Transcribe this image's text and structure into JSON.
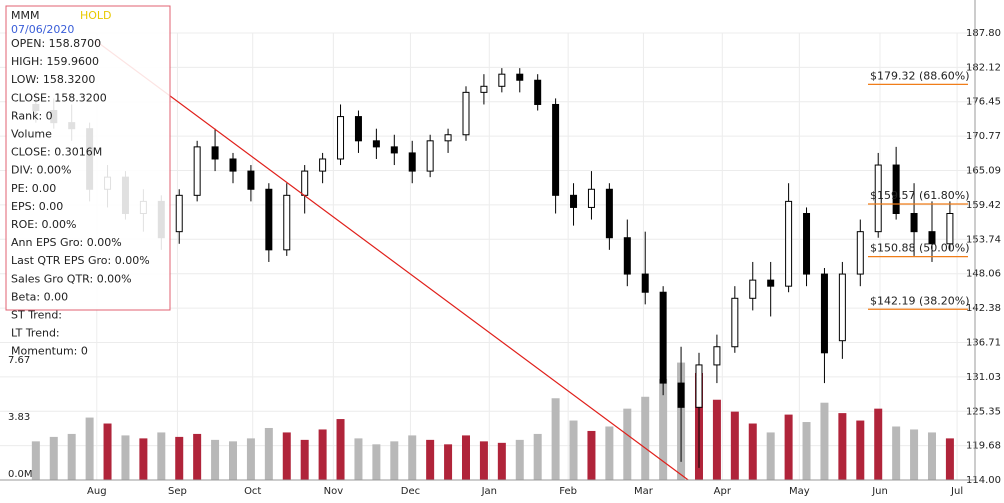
{
  "chart_data": {
    "type": "candlestick",
    "info": {
      "symbol": "MMM",
      "rating": "HOLD",
      "date": "07/06/2020",
      "lines": [
        "OPEN: 158.8700",
        "HIGH: 159.9600",
        "LOW: 158.3200",
        "CLOSE: 158.3200",
        "Rank: 0",
        "Volume",
        "CLOSE: 0.3016M",
        "DIV: 0.00%",
        "PE: 0.00",
        "EPS: 0.00",
        "ROE: 0.00%",
        "Ann EPS Gro: 0.00%",
        "Last QTR EPS Gro: 0.00%",
        "Sales Gro QTR: 0.00%",
        "Beta: 0.00",
        "ST Trend:",
        "LT Trend:",
        "Momentum: 0"
      ]
    },
    "open": [
      176,
      175,
      173,
      172,
      162,
      164,
      158,
      160,
      155,
      161,
      169,
      167,
      165,
      162,
      152,
      161,
      165,
      167,
      174,
      170,
      169,
      168,
      165,
      170,
      171,
      178,
      179,
      181,
      180,
      176,
      161,
      159,
      162,
      154,
      148,
      145,
      130,
      126,
      133,
      136,
      144,
      147,
      146,
      158,
      148,
      137,
      148,
      155,
      166,
      158,
      155,
      153
    ],
    "high": [
      178,
      177,
      176,
      173,
      166,
      165,
      162,
      161,
      162,
      170,
      172,
      168,
      166,
      163,
      163,
      166,
      168,
      176,
      175,
      172,
      171,
      170,
      171,
      172,
      179,
      181,
      182,
      182,
      181,
      177,
      163,
      165,
      163,
      157,
      155,
      146,
      136,
      135,
      138,
      146,
      150,
      150,
      163,
      159,
      149,
      150,
      157,
      168,
      169,
      163,
      160,
      160
    ],
    "low": [
      173,
      172,
      170,
      160,
      159,
      157,
      155,
      152,
      153,
      160,
      165,
      163,
      160,
      150,
      151,
      158,
      163,
      166,
      168,
      167,
      166,
      163,
      164,
      168,
      170,
      176,
      178,
      178,
      175,
      158,
      156,
      157,
      152,
      146,
      143,
      128,
      117,
      116,
      130,
      135,
      142,
      141,
      145,
      146,
      130,
      134,
      146,
      154,
      157,
      151,
      150,
      152
    ],
    "close": [
      175,
      173,
      172,
      162,
      164,
      158,
      160,
      154,
      161,
      169,
      167,
      165,
      162,
      152,
      161,
      165,
      167,
      174,
      170,
      169,
      168,
      165,
      170,
      171,
      178,
      179,
      181,
      180,
      176,
      161,
      159,
      162,
      154,
      148,
      145,
      130,
      126,
      133,
      136,
      144,
      147,
      146,
      160,
      148,
      135,
      148,
      155,
      166,
      158,
      155,
      153,
      158
    ],
    "volume": [
      2.6,
      2.9,
      3.1,
      4.2,
      3.8,
      3.0,
      2.8,
      3.2,
      2.9,
      3.1,
      2.7,
      2.6,
      2.8,
      3.5,
      3.2,
      2.7,
      3.4,
      4.1,
      2.8,
      2.4,
      2.6,
      3.0,
      2.7,
      2.4,
      3.0,
      2.6,
      2.5,
      2.7,
      3.1,
      5.5,
      4.0,
      3.3,
      3.6,
      4.8,
      5.6,
      6.8,
      7.9,
      7.2,
      5.4,
      4.6,
      3.8,
      3.2,
      4.4,
      3.9,
      5.2,
      4.5,
      4.0,
      4.8,
      3.6,
      3.4,
      3.2,
      2.8
    ],
    "xlim": [
      -2,
      52.4
    ],
    "xticks": [
      {
        "value": 3.4,
        "label": "Aug"
      },
      {
        "value": 7.9,
        "label": "Sep"
      },
      {
        "value": 12.1,
        "label": "Oct"
      },
      {
        "value": 16.6,
        "label": "Nov"
      },
      {
        "value": 20.9,
        "label": "Dec"
      },
      {
        "value": 25.3,
        "label": "Jan"
      },
      {
        "value": 29.7,
        "label": "Feb"
      },
      {
        "value": 33.9,
        "label": "Mar"
      },
      {
        "value": 38.3,
        "label": "Apr"
      },
      {
        "value": 42.6,
        "label": "May"
      },
      {
        "value": 47.1,
        "label": "Jun"
      },
      {
        "value": 51.4,
        "label": "Jul"
      }
    ],
    "ylim": [
      114,
      187.8
    ],
    "yticks": [
      {
        "value": 187.8,
        "label": "187.80"
      },
      182.12,
      176.45,
      170.77,
      165.09,
      159.42,
      153.74,
      148.06,
      142.38,
      136.71,
      131.03,
      125.35,
      119.68,
      {
        "value": 114,
        "label": "114.00"
      }
    ],
    "vlim": [
      0,
      7.67
    ],
    "vticks": [
      {
        "value": 0,
        "label": "0.0M"
      },
      3.83,
      7.67
    ],
    "fib_levels": [
      {
        "value": 179.32,
        "label": "$179.32 (88.60%)"
      },
      {
        "value": 159.57,
        "label": "$159.57 (61.80%)"
      },
      {
        "value": 150.88,
        "label": "$150.88 (50.00%)"
      },
      {
        "value": 142.19,
        "label": "$142.19 (38.20%)"
      }
    ],
    "trend_line": {
      "x": [
        3.3,
        36.4
      ],
      "y": [
        186.6,
        114
      ]
    },
    "grid": true,
    "up_color": "#b0243a",
    "down_color": "#b8b8b8",
    "candle_color": "#000000",
    "fib_color": "#f07d19",
    "trend_color": "#e0201b"
  }
}
